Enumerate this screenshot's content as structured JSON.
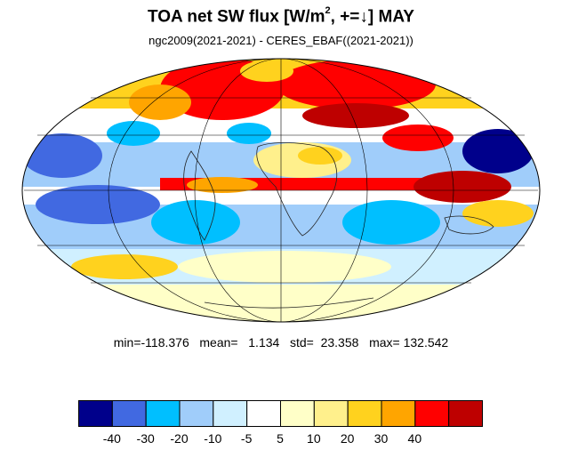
{
  "header": {
    "title_main": "TOA net SW flux [W/m",
    "title_sup": "2",
    "title_tail": ", +=↓]  MAY",
    "subtitle": "ngc2009(2021-2021) - CERES_EBAF((2021-2021))"
  },
  "stats": {
    "text": "min=-118.376   mean=   1.134   std=  23.358   max= 132.542"
  },
  "colorbar": {
    "colors": [
      "#00008b",
      "#4169e1",
      "#00bfff",
      "#a0cdfa",
      "#d0f0ff",
      "#ffffff",
      "#ffffc8",
      "#fff08c",
      "#ffd21e",
      "#ffa500",
      "#ff0000",
      "#be0000"
    ],
    "labels": [
      "-40",
      "-30",
      "-20",
      "-10",
      "-5",
      "5",
      "10",
      "20",
      "30",
      "40"
    ]
  },
  "map": {
    "projection": "Mollweide",
    "field": "TOA net SW flux difference"
  }
}
